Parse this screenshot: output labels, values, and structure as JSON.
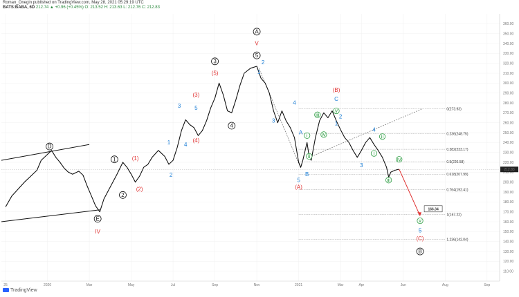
{
  "header": {
    "line1": "Roman_Onegin published on TradingView.com, May 28, 2021 05:29:19 UTC",
    "symbol": "BATS:BABA, 6D",
    "values": "212.74 ▲ +0.96 (+0.45%) O: 213.52 H: 213.63 L: 212.76 C: 212.83"
  },
  "footer": {
    "logo_text": "TradingView"
  },
  "colors": {
    "price": "#111111",
    "red": "#e03131",
    "blue": "#1c7ed6",
    "green": "#2f9e44",
    "grid": "#f0f0f0"
  },
  "chart_data": {
    "type": "line",
    "title": "",
    "ylim": [
      100,
      370
    ],
    "yticks": [
      110,
      120,
      130,
      140,
      150,
      160,
      170,
      180,
      190,
      200,
      210,
      220,
      230,
      240,
      250,
      260,
      270,
      280,
      290,
      300,
      310,
      320,
      330,
      340,
      350,
      360
    ],
    "xticks": [
      {
        "label": "25",
        "x": 0
      },
      {
        "label": "2020",
        "x": 2
      },
      {
        "label": "Mar",
        "x": 4
      },
      {
        "label": "May",
        "x": 6
      },
      {
        "label": "Jul",
        "x": 8
      },
      {
        "label": "Sep",
        "x": 10
      },
      {
        "label": "Nov",
        "x": 12
      },
      {
        "label": "2021",
        "x": 14
      },
      {
        "label": "Mar",
        "x": 16
      },
      {
        "label": "Apr",
        "x": 17
      },
      {
        "label": "Jun",
        "x": 19
      },
      {
        "label": "Aug",
        "x": 21
      },
      {
        "label": "Sep",
        "x": 23
      }
    ],
    "xlim": [
      -0.2,
      23.6
    ],
    "last_price": "212.83",
    "note_price": "166.34",
    "price_series": [
      [
        0.0,
        175
      ],
      [
        0.3,
        186
      ],
      [
        0.6,
        193
      ],
      [
        0.9,
        200
      ],
      [
        1.2,
        206
      ],
      [
        1.5,
        212
      ],
      [
        1.7,
        222
      ],
      [
        2.0,
        228
      ],
      [
        2.2,
        232
      ],
      [
        2.4,
        225
      ],
      [
        2.6,
        220
      ],
      [
        2.8,
        214
      ],
      [
        3.0,
        210
      ],
      [
        3.2,
        208
      ],
      [
        3.5,
        211
      ],
      [
        3.7,
        207
      ],
      [
        3.9,
        196
      ],
      [
        4.1,
        186
      ],
      [
        4.3,
        176
      ],
      [
        4.5,
        170
      ],
      [
        4.7,
        183
      ],
      [
        5.0,
        195
      ],
      [
        5.3,
        207
      ],
      [
        5.6,
        220
      ],
      [
        5.8,
        215
      ],
      [
        6.0,
        208
      ],
      [
        6.2,
        200
      ],
      [
        6.4,
        206
      ],
      [
        6.6,
        215
      ],
      [
        6.8,
        218
      ],
      [
        7.0,
        225
      ],
      [
        7.3,
        232
      ],
      [
        7.6,
        226
      ],
      [
        7.8,
        218
      ],
      [
        8.0,
        222
      ],
      [
        8.2,
        235
      ],
      [
        8.4,
        252
      ],
      [
        8.6,
        263
      ],
      [
        8.8,
        258
      ],
      [
        9.0,
        255
      ],
      [
        9.2,
        247
      ],
      [
        9.4,
        252
      ],
      [
        9.6,
        262
      ],
      [
        9.8,
        275
      ],
      [
        10.0,
        285
      ],
      [
        10.2,
        300
      ],
      [
        10.4,
        288
      ],
      [
        10.6,
        272
      ],
      [
        10.8,
        270
      ],
      [
        11.0,
        283
      ],
      [
        11.2,
        298
      ],
      [
        11.4,
        310
      ],
      [
        11.7,
        315
      ],
      [
        12.0,
        317
      ],
      [
        12.2,
        305
      ],
      [
        12.4,
        300
      ],
      [
        12.6,
        290
      ],
      [
        12.8,
        272
      ],
      [
        13.0,
        260
      ],
      [
        13.2,
        272
      ],
      [
        13.4,
        262
      ],
      [
        13.6,
        255
      ],
      [
        13.8,
        245
      ],
      [
        14.0,
        220
      ],
      [
        14.1,
        215
      ],
      [
        14.2,
        222
      ],
      [
        14.4,
        240
      ],
      [
        14.5,
        226
      ],
      [
        14.6,
        222
      ],
      [
        14.8,
        245
      ],
      [
        15.0,
        262
      ],
      [
        15.2,
        270
      ],
      [
        15.4,
        265
      ],
      [
        15.6,
        272
      ],
      [
        15.8,
        262
      ],
      [
        16.0,
        253
      ],
      [
        16.2,
        245
      ],
      [
        16.4,
        240
      ],
      [
        16.6,
        232
      ],
      [
        16.8,
        225
      ],
      [
        17.0,
        232
      ],
      [
        17.2,
        240
      ],
      [
        17.4,
        245
      ],
      [
        17.6,
        238
      ],
      [
        17.8,
        232
      ],
      [
        18.0,
        225
      ],
      [
        18.2,
        215
      ],
      [
        18.3,
        205
      ],
      [
        18.4,
        210
      ],
      [
        18.6,
        212
      ],
      [
        18.8,
        213
      ]
    ],
    "wave_labels": [
      {
        "text": "D",
        "x": 2.1,
        "y": 236,
        "style": "circle",
        "color": "black"
      },
      {
        "text": "E",
        "x": 4.4,
        "y": 163,
        "style": "circle",
        "color": "black"
      },
      {
        "text": "IV",
        "x": 4.4,
        "y": 150,
        "style": "plain",
        "color": "red"
      },
      {
        "text": "1",
        "x": 5.2,
        "y": 223,
        "style": "circle",
        "color": "black"
      },
      {
        "text": "2",
        "x": 5.6,
        "y": 187,
        "style": "circle",
        "color": "black"
      },
      {
        "text": "(1)",
        "x": 6.2,
        "y": 224,
        "style": "plain",
        "color": "red"
      },
      {
        "text": "(2)",
        "x": 6.4,
        "y": 193,
        "style": "plain",
        "color": "red"
      },
      {
        "text": "1",
        "x": 7.8,
        "y": 240,
        "style": "plain",
        "color": "blue"
      },
      {
        "text": "2",
        "x": 7.9,
        "y": 207,
        "style": "plain",
        "color": "blue"
      },
      {
        "text": "3",
        "x": 8.3,
        "y": 277,
        "style": "plain",
        "color": "blue"
      },
      {
        "text": "4",
        "x": 8.6,
        "y": 238,
        "style": "plain",
        "color": "blue"
      },
      {
        "text": "5",
        "x": 9.1,
        "y": 275,
        "style": "plain",
        "color": "blue"
      },
      {
        "text": "(3)",
        "x": 9.1,
        "y": 288,
        "style": "plain",
        "color": "red"
      },
      {
        "text": "(4)",
        "x": 9.1,
        "y": 242,
        "style": "plain",
        "color": "red"
      },
      {
        "text": "3",
        "x": 10.0,
        "y": 322,
        "style": "circle",
        "color": "black"
      },
      {
        "text": "(5)",
        "x": 10.0,
        "y": 310,
        "style": "plain",
        "color": "red"
      },
      {
        "text": "4",
        "x": 10.8,
        "y": 257,
        "style": "circle",
        "color": "black"
      },
      {
        "text": "A",
        "x": 12.0,
        "y": 352,
        "style": "circle",
        "color": "black"
      },
      {
        "text": "V",
        "x": 12.0,
        "y": 340,
        "style": "plain",
        "color": "red"
      },
      {
        "text": "5",
        "x": 12.0,
        "y": 328,
        "style": "circle",
        "color": "black"
      },
      {
        "text": "1",
        "x": 12.1,
        "y": 311,
        "style": "plain",
        "color": "blue"
      },
      {
        "text": "2",
        "x": 12.3,
        "y": 321,
        "style": "plain",
        "color": "blue"
      },
      {
        "text": "3",
        "x": 12.8,
        "y": 262,
        "style": "plain",
        "color": "blue"
      },
      {
        "text": "4",
        "x": 13.8,
        "y": 280,
        "style": "plain",
        "color": "blue"
      },
      {
        "text": "A",
        "x": 14.1,
        "y": 250,
        "style": "plain",
        "color": "blue"
      },
      {
        "text": "B",
        "x": 14.4,
        "y": 208,
        "style": "plain",
        "color": "blue"
      },
      {
        "text": "5",
        "x": 14.0,
        "y": 202,
        "style": "plain",
        "color": "blue"
      },
      {
        "text": "(A)",
        "x": 14.0,
        "y": 195,
        "style": "plain",
        "color": "red"
      },
      {
        "text": "i",
        "x": 14.4,
        "y": 247,
        "style": "circle",
        "color": "green"
      },
      {
        "text": "ii",
        "x": 14.5,
        "y": 226,
        "style": "circle",
        "color": "green"
      },
      {
        "text": "iii",
        "x": 14.9,
        "y": 268,
        "style": "circle",
        "color": "green"
      },
      {
        "text": "iv",
        "x": 15.2,
        "y": 248,
        "style": "circle",
        "color": "green"
      },
      {
        "text": "(B)",
        "x": 15.8,
        "y": 293,
        "style": "plain",
        "color": "red"
      },
      {
        "text": "C",
        "x": 15.8,
        "y": 284,
        "style": "plain",
        "color": "blue"
      },
      {
        "text": "v",
        "x": 15.8,
        "y": 272,
        "style": "circle",
        "color": "green"
      },
      {
        "text": "2",
        "x": 16.0,
        "y": 266,
        "style": "plain",
        "color": "blue"
      },
      {
        "text": "1",
        "x": 15.8,
        "y": 259,
        "style": "plain",
        "color": "blue"
      },
      {
        "text": "3",
        "x": 17.0,
        "y": 217,
        "style": "plain",
        "color": "blue"
      },
      {
        "text": "4",
        "x": 17.6,
        "y": 253,
        "style": "plain",
        "color": "blue"
      },
      {
        "text": "i",
        "x": 17.6,
        "y": 229,
        "style": "circle",
        "color": "green"
      },
      {
        "text": "ii",
        "x": 18.0,
        "y": 246,
        "style": "circle",
        "color": "green"
      },
      {
        "text": "iii",
        "x": 18.3,
        "y": 202,
        "style": "circle",
        "color": "green"
      },
      {
        "text": "iv",
        "x": 18.8,
        "y": 223,
        "style": "circle",
        "color": "green"
      },
      {
        "text": "v",
        "x": 19.8,
        "y": 161,
        "style": "circle",
        "color": "green"
      },
      {
        "text": "5",
        "x": 19.8,
        "y": 151,
        "style": "plain",
        "color": "blue"
      },
      {
        "text": "(C)",
        "x": 19.8,
        "y": 143,
        "style": "plain",
        "color": "red"
      },
      {
        "text": "B",
        "x": 19.8,
        "y": 130,
        "style": "circle",
        "color": "black"
      }
    ],
    "fib_levels": [
      {
        "label": "0(273.93)",
        "value": 273.93
      },
      {
        "label": "0.236(248.75)",
        "value": 248.75
      },
      {
        "label": "0.382(233.17)",
        "value": 233.17
      },
      {
        "label": "0.5(220.58)",
        "value": 220.58
      },
      {
        "label": "0.618(207.99)",
        "value": 207.99
      },
      {
        "label": "0.764(192.41)",
        "value": 192.41
      },
      {
        "label": "1(167.22)",
        "value": 167.22
      },
      {
        "label": "1.236(142.04)",
        "value": 142.04
      }
    ]
  }
}
